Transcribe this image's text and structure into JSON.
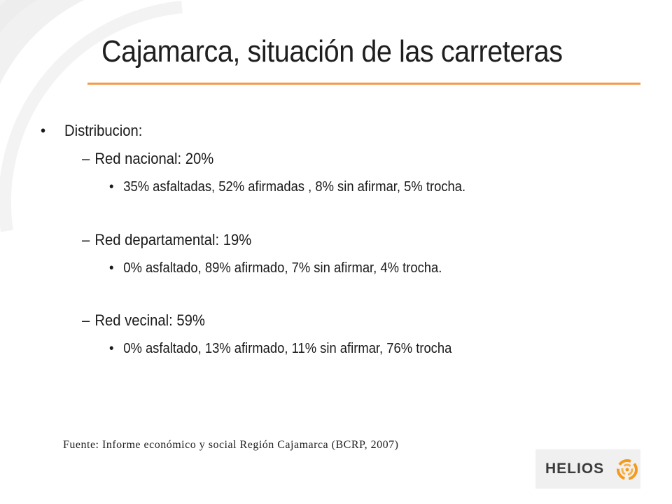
{
  "slide": {
    "title": "Cajamarca, situación de las carreteras",
    "accent_color": "#f39a4a"
  },
  "content": {
    "heading": {
      "bullet": "•",
      "text": "Distribucion:"
    },
    "groups": [
      {
        "dash": "–",
        "label": "Red nacional: 20%",
        "detail_bullet": "•",
        "detail": "35% asfaltadas, 52% afirmadas , 8% sin afirmar, 5% trocha."
      },
      {
        "dash": "–",
        "label": "Red departamental: 19%",
        "detail_bullet": "•",
        "detail": "0% asfaltado, 89% afirmado, 7% sin afirmar, 4% trocha."
      },
      {
        "dash": "–",
        "label": "Red vecinal: 59%",
        "detail_bullet": "•",
        "detail": "0% asfaltado, 13% afirmado, 11% sin afirmar, 76% trocha"
      }
    ]
  },
  "footer": {
    "source": "Fuente: Informe económico y social Región Cajamarca (BCRP, 2007)",
    "logo_text": "HELIOS"
  }
}
